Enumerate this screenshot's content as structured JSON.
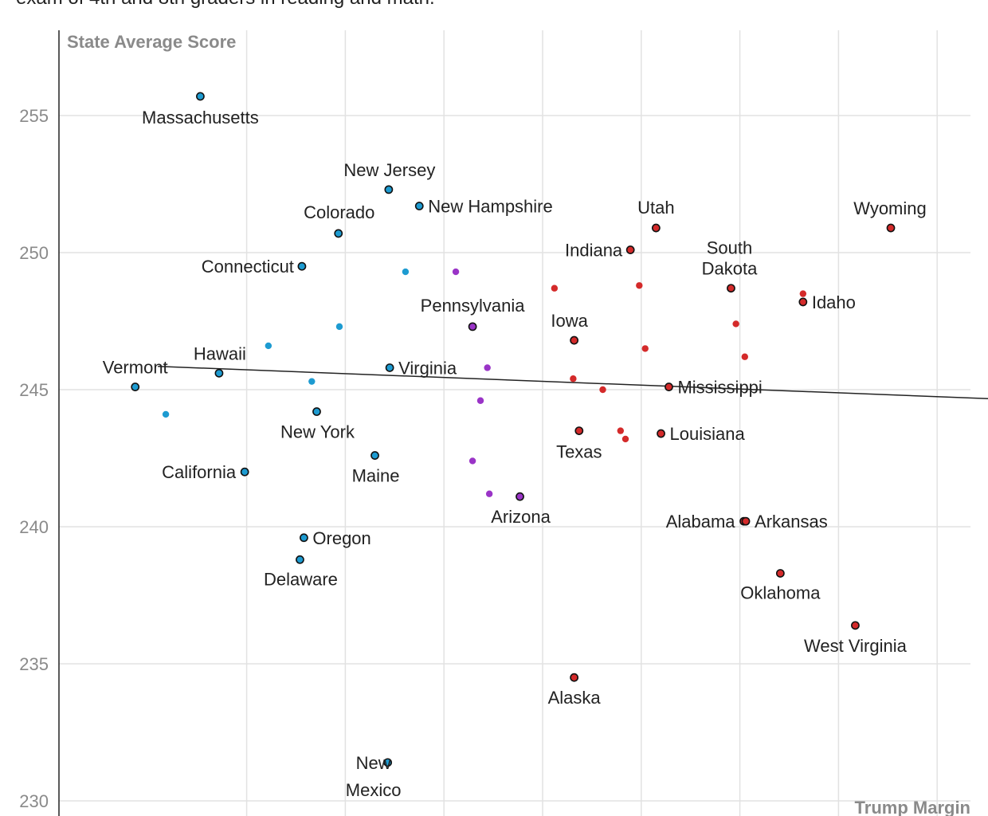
{
  "subtitle": "exam of 4th and 8th graders in reading and math.",
  "chart_data": {
    "type": "scatter",
    "ylabel": "State Average Score",
    "xlabel": "Trump Margin",
    "ylim": [
      230,
      257
    ],
    "y_ticks": [
      230,
      235,
      240,
      245,
      250,
      255
    ],
    "xlim": [
      -39,
      54
    ],
    "x_gridlines": [
      -30,
      -20,
      -10,
      0,
      10,
      20,
      30,
      40,
      50
    ],
    "grid": true,
    "colors": {
      "dem": "#1d9bd1",
      "rep": "#d42a2a",
      "swing": "#9a34c7",
      "outline": "#111111"
    },
    "trendline": {
      "x": [
        -39,
        54
      ],
      "y": [
        245.85,
        244.55
      ]
    },
    "labeled_points": [
      {
        "name": "Massachusetts",
        "x": -34.7,
        "y": 255.7,
        "party": "dem"
      },
      {
        "name": "New Jersey",
        "x": -15.6,
        "y": 252.3,
        "party": "dem"
      },
      {
        "name": "New Hampshire",
        "x": -12.5,
        "y": 251.7,
        "party": "dem"
      },
      {
        "name": "Colorado",
        "x": -20.7,
        "y": 250.7,
        "party": "dem"
      },
      {
        "name": "Connecticut",
        "x": -24.4,
        "y": 249.5,
        "party": "dem"
      },
      {
        "name": "Pennsylvania",
        "x": -7.1,
        "y": 247.3,
        "party": "swing"
      },
      {
        "name": "Virginia",
        "x": -15.5,
        "y": 245.8,
        "party": "dem"
      },
      {
        "name": "Hawaii",
        "x": -32.8,
        "y": 245.6,
        "party": "dem"
      },
      {
        "name": "Vermont",
        "x": -41.3,
        "y": 245.1,
        "party": "dem"
      },
      {
        "name": "New York",
        "x": -22.9,
        "y": 244.2,
        "party": "dem"
      },
      {
        "name": "Maine",
        "x": -17.0,
        "y": 242.6,
        "party": "dem"
      },
      {
        "name": "California",
        "x": -30.2,
        "y": 242.0,
        "party": "dem"
      },
      {
        "name": "Arizona",
        "x": -2.3,
        "y": 241.1,
        "party": "swing"
      },
      {
        "name": "Oregon",
        "x": -24.2,
        "y": 239.6,
        "party": "dem"
      },
      {
        "name": "Delaware",
        "x": -24.6,
        "y": 238.8,
        "party": "dem"
      },
      {
        "name": "New Mexico",
        "x": -15.7,
        "y": 231.4,
        "party": "dem"
      },
      {
        "name": "Utah",
        "x": 11.5,
        "y": 250.9,
        "party": "rep"
      },
      {
        "name": "Indiana",
        "x": 8.9,
        "y": 250.1,
        "party": "rep"
      },
      {
        "name": "South Dakota",
        "x": 19.1,
        "y": 248.7,
        "party": "rep"
      },
      {
        "name": "Idaho",
        "x": 26.4,
        "y": 248.2,
        "party": "rep"
      },
      {
        "name": "Wyoming",
        "x": 35.3,
        "y": 250.9,
        "party": "rep"
      },
      {
        "name": "Iowa",
        "x": 3.2,
        "y": 246.8,
        "party": "rep"
      },
      {
        "name": "Mississippi",
        "x": 12.8,
        "y": 245.1,
        "party": "rep"
      },
      {
        "name": "Louisiana",
        "x": 12.0,
        "y": 243.4,
        "party": "rep"
      },
      {
        "name": "Texas",
        "x": 3.7,
        "y": 243.5,
        "party": "rep"
      },
      {
        "name": "Alabama",
        "x": 20.4,
        "y": 240.2,
        "party": "rep"
      },
      {
        "name": "Arkansas",
        "x": 20.6,
        "y": 240.2,
        "party": "rep"
      },
      {
        "name": "Oklahoma",
        "x": 24.1,
        "y": 238.3,
        "party": "rep"
      },
      {
        "name": "West Virginia",
        "x": 31.7,
        "y": 236.4,
        "party": "rep"
      },
      {
        "name": "Alaska",
        "x": 3.2,
        "y": 234.5,
        "party": "rep"
      }
    ],
    "unlabeled_points": [
      {
        "x": -13.9,
        "y": 249.3,
        "party": "dem"
      },
      {
        "x": -20.6,
        "y": 247.3,
        "party": "dem"
      },
      {
        "x": -27.8,
        "y": 246.6,
        "party": "dem"
      },
      {
        "x": -23.4,
        "y": 245.3,
        "party": "dem"
      },
      {
        "x": -38.2,
        "y": 244.1,
        "party": "dem"
      },
      {
        "x": -8.8,
        "y": 249.3,
        "party": "swing"
      },
      {
        "x": -5.6,
        "y": 245.8,
        "party": "swing"
      },
      {
        "x": -6.3,
        "y": 244.6,
        "party": "swing"
      },
      {
        "x": -7.1,
        "y": 242.4,
        "party": "swing"
      },
      {
        "x": -5.4,
        "y": 241.2,
        "party": "swing"
      },
      {
        "x": 1.2,
        "y": 248.7,
        "party": "rep"
      },
      {
        "x": 9.8,
        "y": 248.8,
        "party": "rep"
      },
      {
        "x": 10.4,
        "y": 246.5,
        "party": "rep"
      },
      {
        "x": 19.6,
        "y": 247.4,
        "party": "rep"
      },
      {
        "x": 20.5,
        "y": 246.2,
        "party": "rep"
      },
      {
        "x": 26.4,
        "y": 248.5,
        "party": "rep"
      },
      {
        "x": 3.1,
        "y": 245.4,
        "party": "rep"
      },
      {
        "x": 6.1,
        "y": 245.0,
        "party": "rep"
      },
      {
        "x": 7.9,
        "y": 243.5,
        "party": "rep"
      },
      {
        "x": 8.4,
        "y": 243.2,
        "party": "rep"
      }
    ]
  }
}
